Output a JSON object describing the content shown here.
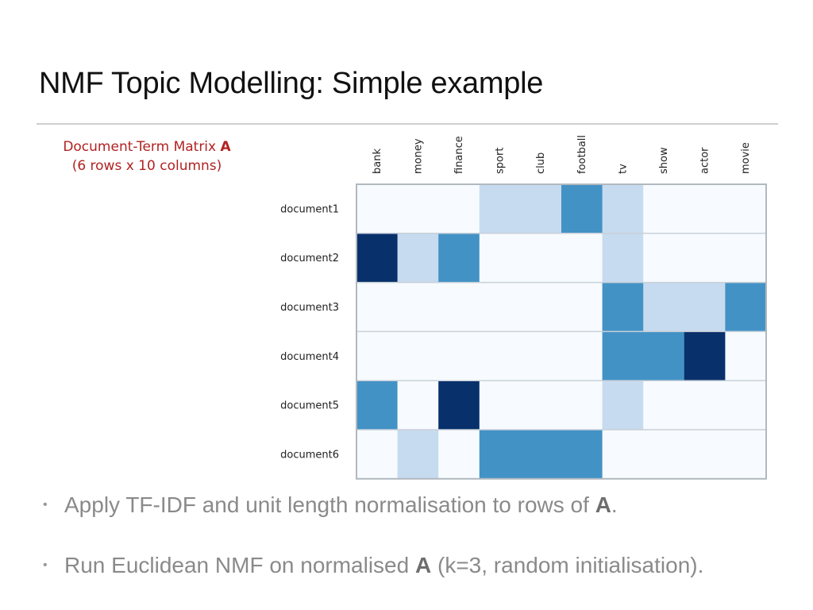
{
  "slide": {
    "title": "NMF Topic Modelling: Simple example"
  },
  "caption": {
    "line1_prefix": "Document-Term Matrix ",
    "line1_bold": "A",
    "line2": "(6 rows x 10 columns)"
  },
  "bullets": [
    {
      "text_before": "Apply TF-IDF and unit length normalisation to rows of ",
      "bold": "A",
      "text_after": "."
    },
    {
      "text_before": "Run Euclidean NMF on normalised ",
      "bold": "A",
      "text_after": " (k=3, random initialisation)."
    }
  ],
  "colors": {
    "scale": [
      "#f7fbff",
      "#c6dbef",
      "#4292c6",
      "#08306b"
    ],
    "grid": "#c8d0d8",
    "border": "#b0b8c0",
    "caption": "#b22222"
  },
  "chart_data": {
    "type": "heatmap",
    "columns": [
      "bank",
      "money",
      "finance",
      "sport",
      "club",
      "football",
      "tv",
      "show",
      "actor",
      "movie"
    ],
    "rows": [
      "document1",
      "document2",
      "document3",
      "document4",
      "document5",
      "document6"
    ],
    "values": [
      [
        0,
        0,
        0,
        1,
        1,
        2,
        1,
        0,
        0,
        0
      ],
      [
        3,
        1,
        2,
        0,
        0,
        0,
        1,
        0,
        0,
        0
      ],
      [
        0,
        0,
        0,
        0,
        0,
        0,
        2,
        1,
        1,
        2
      ],
      [
        0,
        0,
        0,
        0,
        0,
        0,
        2,
        2,
        3,
        0
      ],
      [
        2,
        0,
        3,
        0,
        0,
        0,
        1,
        0,
        0,
        0
      ],
      [
        0,
        1,
        0,
        2,
        2,
        2,
        0,
        0,
        0,
        0
      ]
    ],
    "value_range": [
      0,
      3
    ],
    "grid": true,
    "legend": "none"
  }
}
